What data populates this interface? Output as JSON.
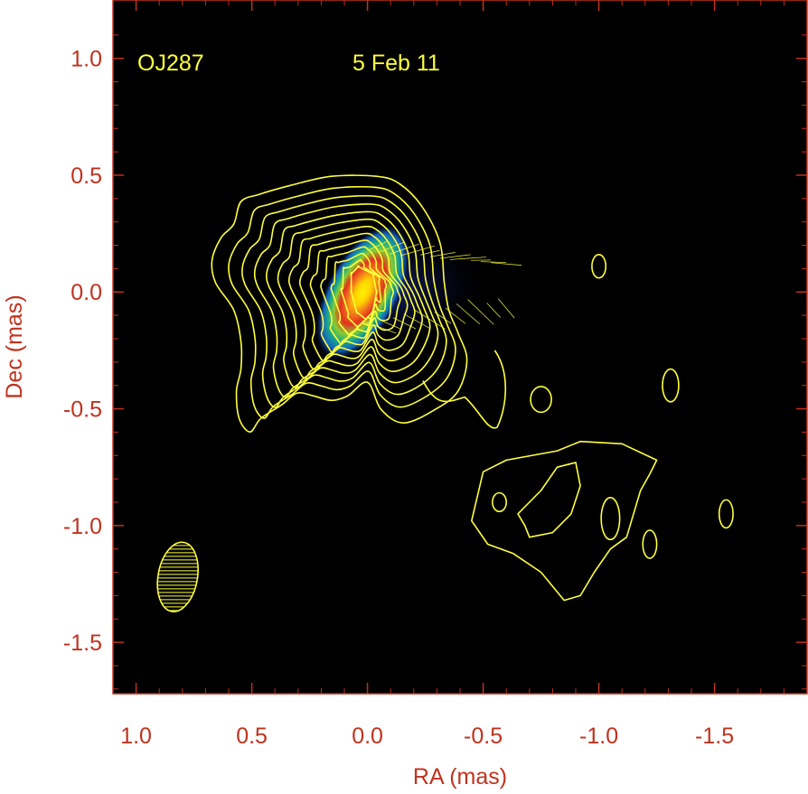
{
  "chart_data": {
    "type": "heatmap",
    "subtype": "radio-map-with-contours-and-polarization-vectors",
    "source_label": "OJ287",
    "date_label": "5 Feb 11",
    "xlabel": "RA (mas)",
    "ylabel": "Dec (mas)",
    "xlim": [
      1.1,
      -1.9
    ],
    "ylim": [
      -1.72,
      1.25
    ],
    "x_ticks": [
      1.0,
      0.5,
      0.0,
      -0.5,
      -1.0,
      -1.5
    ],
    "x_tick_labels": [
      "1.0",
      "0.5",
      "0.0",
      "-0.5",
      "-1.0",
      "-1.5"
    ],
    "y_ticks": [
      1.0,
      0.5,
      0.0,
      -0.5,
      -1.0,
      -1.5
    ],
    "y_tick_labels": [
      "1.0",
      "0.5",
      "0.0",
      "-0.5",
      "-1.0",
      "-1.5"
    ],
    "background_color": "#000000",
    "contour_color": "#ffff3c",
    "axis_color": "#c0321e",
    "colormap": [
      "#000000",
      "#0a1a5c",
      "#1565c0",
      "#1aa88a",
      "#7ccd3a",
      "#f29a1c",
      "#e2321e",
      "#ffe000"
    ],
    "core": {
      "x": 0.02,
      "y": 0.0,
      "semi_major": 0.09,
      "semi_minor": 0.04,
      "position_angle_deg": 28
    },
    "beam": {
      "x": 0.82,
      "y": -1.22,
      "semi_major": 0.15,
      "semi_minor": 0.085,
      "position_angle_deg": 10
    },
    "main_contours_count": 13,
    "isolated_contours": [
      {
        "x": -1.0,
        "y": 0.11,
        "rx": 0.03,
        "ry": 0.05
      },
      {
        "x": -0.75,
        "y": -0.46,
        "rx": 0.045,
        "ry": 0.055
      },
      {
        "x": -1.31,
        "y": -0.4,
        "rx": 0.035,
        "ry": 0.07
      },
      {
        "x": -0.57,
        "y": -0.9,
        "rx": 0.03,
        "ry": 0.04
      },
      {
        "x": -1.05,
        "y": -0.97,
        "rx": 0.04,
        "ry": 0.09
      },
      {
        "x": -1.22,
        "y": -1.08,
        "rx": 0.03,
        "ry": 0.06
      },
      {
        "x": -1.55,
        "y": -0.95,
        "rx": 0.03,
        "ry": 0.06
      }
    ]
  }
}
